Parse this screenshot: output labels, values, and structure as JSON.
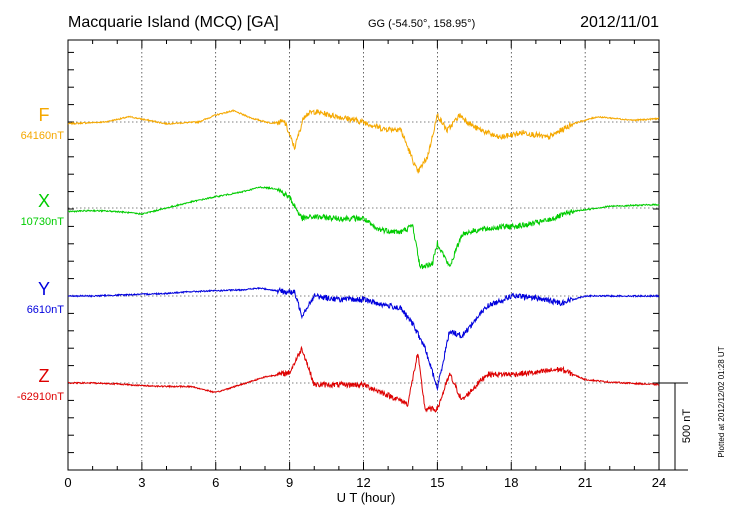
{
  "header": {
    "station": "Macquarie Island (MCQ)  [GA]",
    "coords": "GG (-54.50°, 158.95°)",
    "date": "2012/11/01"
  },
  "plotted_note": "Plotted at 2012/12/02 01:28 UT",
  "scale_label": "500 nT",
  "chart_data": {
    "type": "line",
    "xlabel": "U T (hour)",
    "xlim": [
      0,
      24
    ],
    "xticks": [
      "0",
      "3",
      "6",
      "9",
      "12",
      "15",
      "18",
      "21",
      "24"
    ],
    "grid": true,
    "scale_nT": 500,
    "series": [
      {
        "name": "F",
        "baseline": "64160nT",
        "color": "#f5a800",
        "samples": [
          [
            0,
            -10
          ],
          [
            1.5,
            0
          ],
          [
            2.5,
            30
          ],
          [
            4,
            -10
          ],
          [
            5.3,
            0
          ],
          [
            6,
            40
          ],
          [
            6.7,
            65
          ],
          [
            7.5,
            20
          ],
          [
            8.2,
            -5
          ],
          [
            8.8,
            0
          ],
          [
            9.2,
            -150
          ],
          [
            9.6,
            40
          ],
          [
            10,
            60
          ],
          [
            11,
            30
          ],
          [
            12,
            0
          ],
          [
            12.8,
            -40
          ],
          [
            13.5,
            -40
          ],
          [
            14.2,
            -290
          ],
          [
            14.6,
            -200
          ],
          [
            15,
            40
          ],
          [
            15.4,
            -50
          ],
          [
            15.9,
            40
          ],
          [
            16.5,
            -30
          ],
          [
            17.5,
            -90
          ],
          [
            18.5,
            -60
          ],
          [
            19.5,
            -90
          ],
          [
            20.5,
            -10
          ],
          [
            21.5,
            30
          ],
          [
            23,
            10
          ],
          [
            24,
            20
          ]
        ]
      },
      {
        "name": "X",
        "baseline": "10730nT",
        "color": "#00cc00",
        "samples": [
          [
            0,
            -20
          ],
          [
            1,
            -15
          ],
          [
            2,
            -20
          ],
          [
            3,
            -35
          ],
          [
            4,
            0
          ],
          [
            5,
            35
          ],
          [
            6,
            65
          ],
          [
            7,
            90
          ],
          [
            7.8,
            120
          ],
          [
            8.5,
            110
          ],
          [
            9,
            60
          ],
          [
            9.5,
            -60
          ],
          [
            10,
            -50
          ],
          [
            11,
            -60
          ],
          [
            12,
            -60
          ],
          [
            12.5,
            -120
          ],
          [
            13.5,
            -140
          ],
          [
            14,
            -100
          ],
          [
            14.3,
            -340
          ],
          [
            14.8,
            -320
          ],
          [
            15,
            -200
          ],
          [
            15.5,
            -340
          ],
          [
            16,
            -150
          ],
          [
            16.5,
            -130
          ],
          [
            17.5,
            -110
          ],
          [
            18.5,
            -100
          ],
          [
            19.5,
            -70
          ],
          [
            20.5,
            -20
          ],
          [
            22,
            10
          ],
          [
            24,
            20
          ]
        ]
      },
      {
        "name": "Y",
        "baseline": "6610nT",
        "color": "#0000dd",
        "samples": [
          [
            0,
            0
          ],
          [
            1,
            0
          ],
          [
            2,
            5
          ],
          [
            3,
            10
          ],
          [
            4,
            15
          ],
          [
            5,
            25
          ],
          [
            6,
            30
          ],
          [
            7,
            35
          ],
          [
            7.8,
            45
          ],
          [
            8.5,
            30
          ],
          [
            9.2,
            20
          ],
          [
            9.5,
            -110
          ],
          [
            10,
            0
          ],
          [
            11,
            -20
          ],
          [
            12,
            -20
          ],
          [
            12.5,
            -40
          ],
          [
            13.5,
            -70
          ],
          [
            14,
            -160
          ],
          [
            14.5,
            -300
          ],
          [
            15,
            -530
          ],
          [
            15.5,
            -200
          ],
          [
            16,
            -230
          ],
          [
            17,
            -60
          ],
          [
            18,
            0
          ],
          [
            19,
            -10
          ],
          [
            20,
            -40
          ],
          [
            21,
            0
          ],
          [
            22,
            0
          ],
          [
            24,
            0
          ]
        ]
      },
      {
        "name": "Z",
        "baseline": "-62910nT",
        "color": "#dd0000",
        "samples": [
          [
            0,
            0
          ],
          [
            1,
            0
          ],
          [
            2,
            -5
          ],
          [
            3,
            -15
          ],
          [
            4,
            -20
          ],
          [
            5,
            -20
          ],
          [
            6,
            -55
          ],
          [
            7,
            -10
          ],
          [
            8,
            35
          ],
          [
            9,
            60
          ],
          [
            9.5,
            200
          ],
          [
            10,
            -10
          ],
          [
            11,
            -10
          ],
          [
            12,
            -10
          ],
          [
            12.5,
            -40
          ],
          [
            13.5,
            -100
          ],
          [
            13.8,
            -120
          ],
          [
            14.2,
            170
          ],
          [
            14.5,
            -150
          ],
          [
            15,
            -150
          ],
          [
            15.5,
            50
          ],
          [
            16,
            -100
          ],
          [
            17,
            50
          ],
          [
            18,
            50
          ],
          [
            19,
            60
          ],
          [
            20,
            80
          ],
          [
            21,
            20
          ],
          [
            22,
            5
          ],
          [
            24,
            -10
          ]
        ]
      }
    ]
  }
}
